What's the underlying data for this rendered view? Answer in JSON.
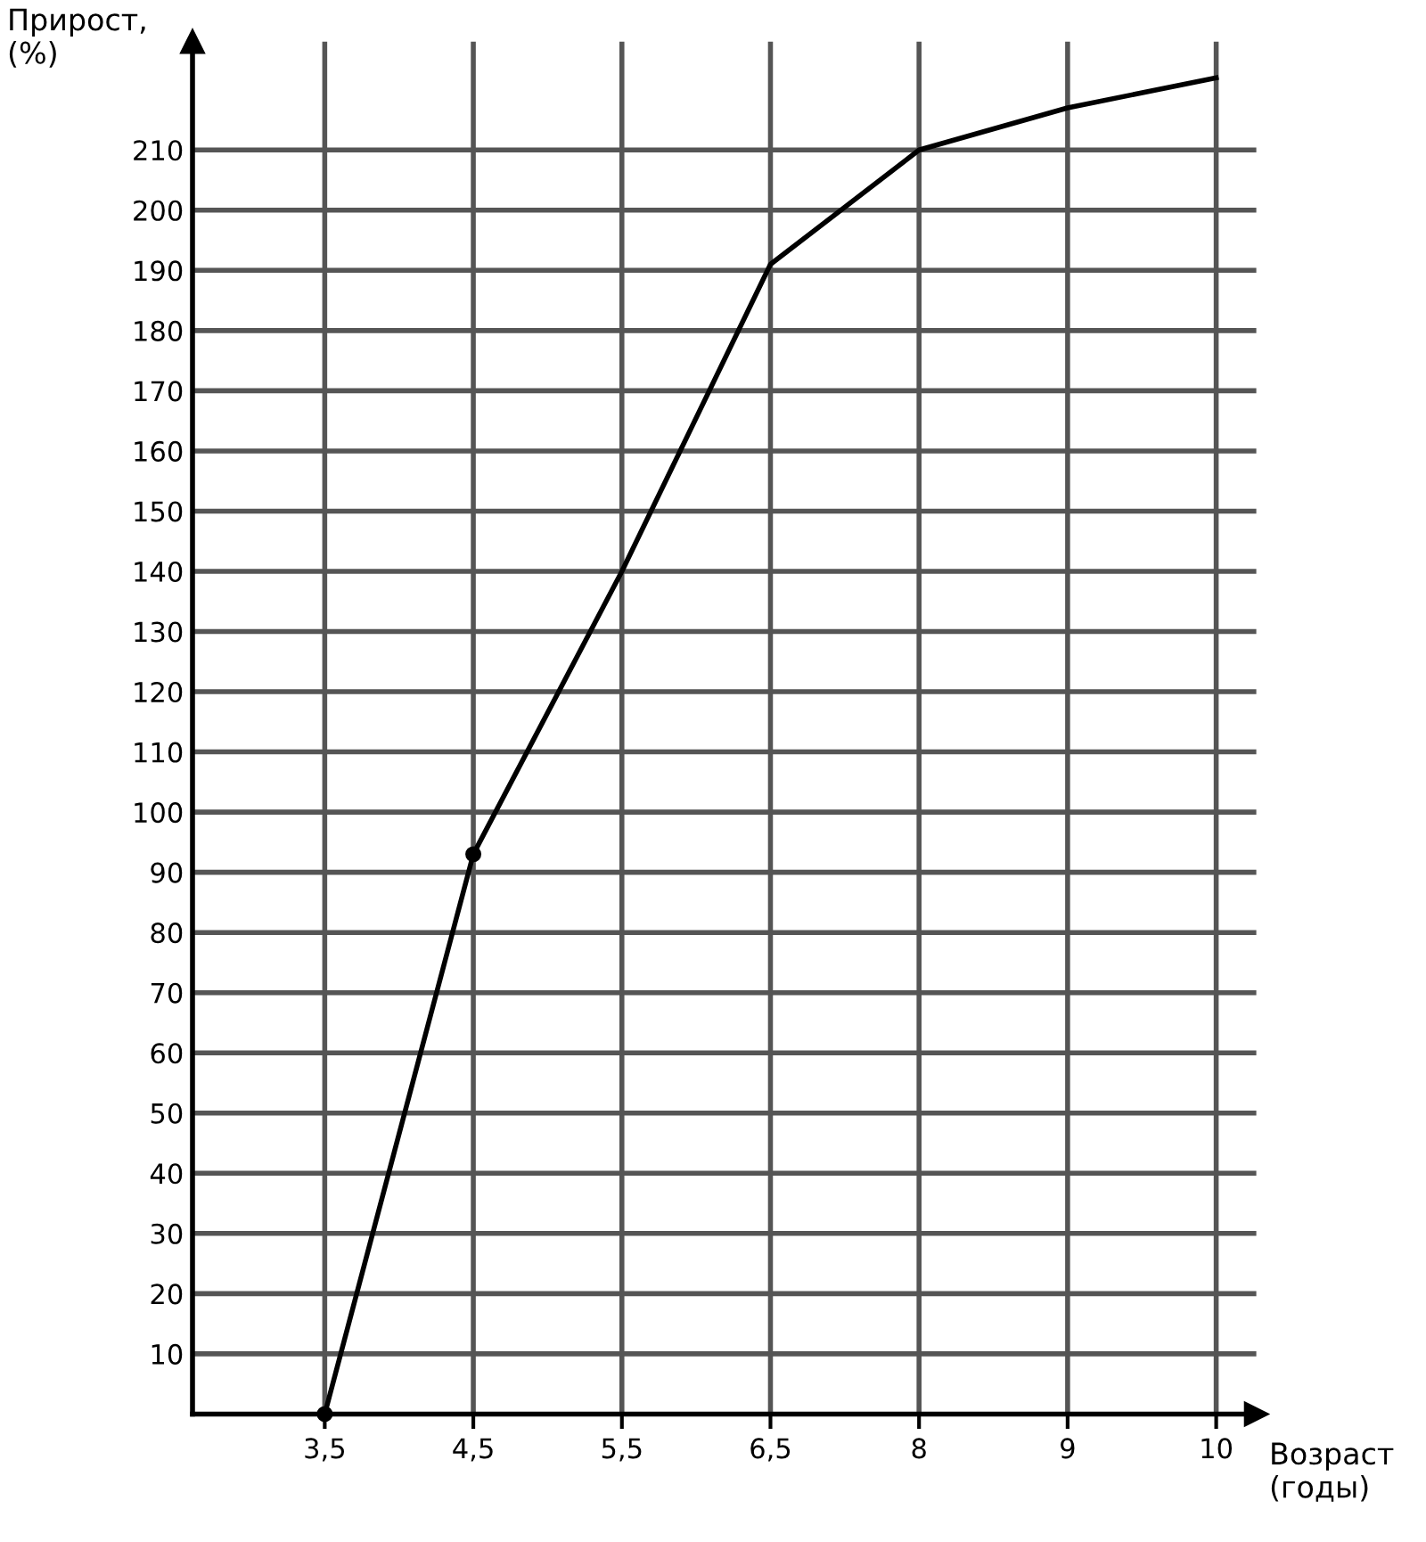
{
  "chart_data": {
    "type": "line",
    "xlabel": "Возраст\n(годы)",
    "ylabel": "Прирост,\n(%)",
    "categories": [
      "3,5",
      "4,5",
      "5,5",
      "6,5",
      "8",
      "9",
      "10"
    ],
    "series": [
      {
        "color": "#000000",
        "values": [
          0,
          93,
          140,
          191,
          210,
          217,
          222
        ]
      },
      {
        "type": "scatter",
        "color": "#000000",
        "x": [
          "3,5",
          "4,5"
        ],
        "values": [
          0,
          93
        ]
      }
    ],
    "ylim": [
      0,
      228
    ],
    "yticks": [
      10,
      20,
      30,
      40,
      50,
      60,
      70,
      80,
      90,
      100,
      110,
      120,
      130,
      140,
      150,
      160,
      170,
      180,
      190,
      200,
      210
    ],
    "grid": true,
    "line_style": "solid"
  }
}
